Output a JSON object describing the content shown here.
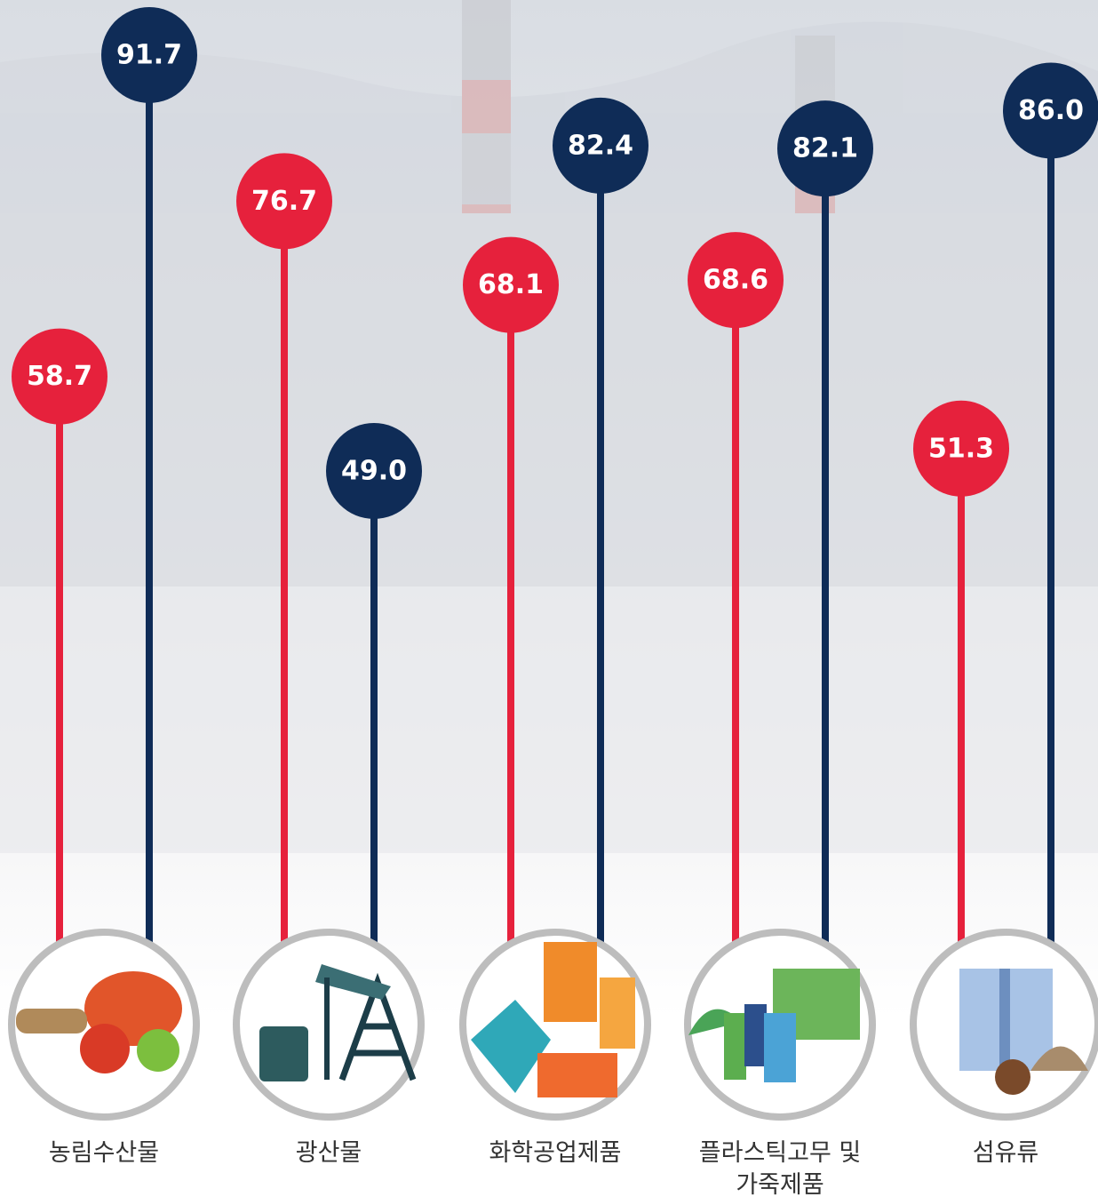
{
  "chart_data": {
    "type": "lollipop",
    "categories": [
      "농림수산물",
      "광산물",
      "화학공업제품",
      "플라스틱고무 및 가죽제품",
      "섬유류"
    ],
    "series": [
      {
        "color": "#e6213c",
        "values": [
          58.7,
          76.7,
          68.1,
          68.6,
          51.3
        ],
        "value_labels": [
          "58.7",
          "76.7",
          "68.1",
          "68.6",
          "51.3"
        ]
      },
      {
        "color": "#0f2c57",
        "values": [
          91.7,
          49.0,
          82.4,
          82.1,
          86.0
        ],
        "value_labels": [
          "91.7",
          "49.0",
          "82.4",
          "82.1",
          "86.0"
        ]
      }
    ]
  }
}
